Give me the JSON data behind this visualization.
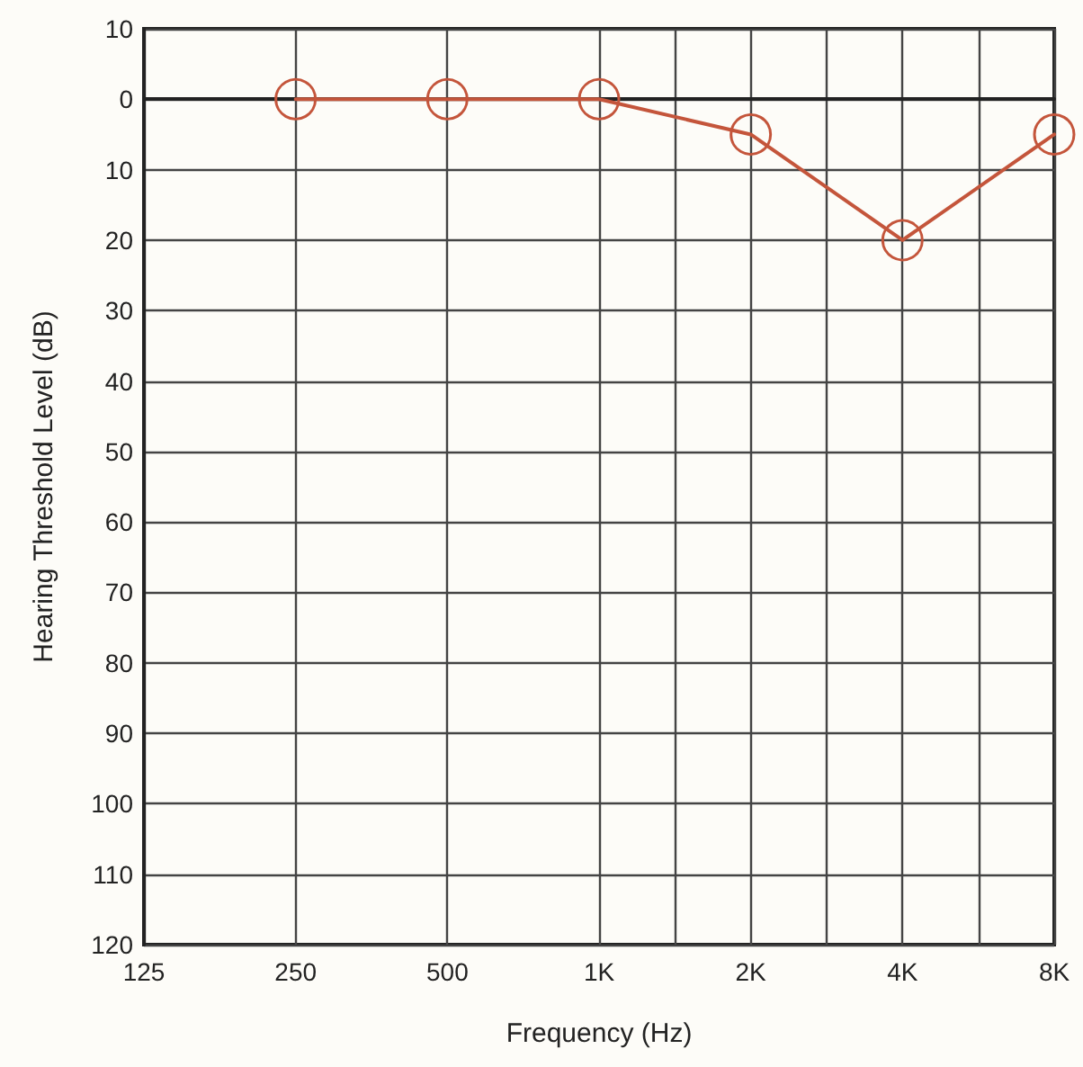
{
  "chart_data": {
    "type": "line",
    "xlabel": "Frequency (Hz)",
    "ylabel": "Hearing Threshold Level (dB)",
    "x": [
      250,
      500,
      1000,
      2000,
      4000,
      8000
    ],
    "series": [
      {
        "color": "#c4553b",
        "values": [
          0,
          0,
          0,
          5,
          20,
          5
        ]
      }
    ],
    "log": "x",
    "xlim": [
      125,
      8000
    ],
    "xticks": [
      125,
      250,
      500,
      {
        "value": 1000,
        "label": "1K"
      },
      {
        "value": 1414,
        "label": null
      },
      {
        "value": 2000,
        "label": "2K"
      },
      {
        "value": 2828,
        "label": null
      },
      {
        "value": 4000,
        "label": "4K"
      },
      {
        "value": 5657,
        "label": null
      },
      {
        "value": 8000,
        "label": "8K"
      }
    ],
    "ylim": [
      120,
      -10
    ],
    "yticks": [
      {
        "value": -10,
        "label": "10"
      },
      0,
      10,
      20,
      30,
      40,
      50,
      60,
      70,
      80,
      90,
      100,
      110,
      120
    ],
    "grid": true,
    "marker": "circle",
    "line_style": "solid"
  }
}
